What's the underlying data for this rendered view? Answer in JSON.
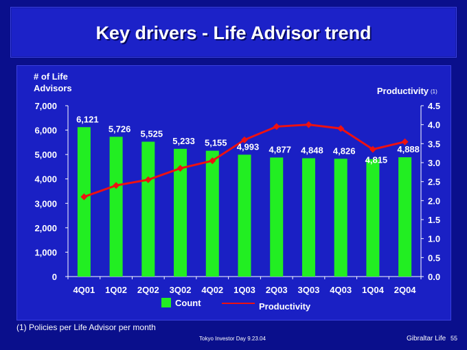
{
  "slide": {
    "title": "Key drivers - Life Advisor trend",
    "footnote": "(1) Policies per Life Advisor per month",
    "footer_event": "Tokyo Investor Day 9.23.04",
    "footer_company": "Gibraltar Life",
    "page_number": "55"
  },
  "colors": {
    "background": "#0a0f8c",
    "panel": "#1a20c4",
    "bar": "#22ee22",
    "line": "#ee1111"
  },
  "chart_data": {
    "type": "bar",
    "categories": [
      "4Q01",
      "1Q02",
      "2Q02",
      "3Q02",
      "4Q02",
      "1Q03",
      "2Q03",
      "3Q03",
      "4Q03",
      "1Q04",
      "2Q04"
    ],
    "series": [
      {
        "name": "Count",
        "type": "bar",
        "axis": "left",
        "values": [
          6121,
          5726,
          5525,
          5233,
          5155,
          4993,
          4877,
          4848,
          4826,
          4815,
          4888
        ],
        "labels": [
          "6,121",
          "5,726",
          "5,525",
          "5,233",
          "5,155",
          "4,993",
          "4,877",
          "4,848",
          "4,826",
          "4,815",
          "4,888"
        ]
      },
      {
        "name": "Productivity",
        "type": "line",
        "axis": "right",
        "values": [
          2.1,
          2.4,
          2.55,
          2.85,
          3.05,
          3.6,
          3.95,
          4.0,
          3.9,
          3.35,
          3.55
        ]
      }
    ],
    "y_left": {
      "label_line1": "# of Life",
      "label_line2": "Advisors",
      "range": [
        0,
        7000
      ],
      "ticks": [
        "0",
        "1,000",
        "2,000",
        "3,000",
        "4,000",
        "5,000",
        "6,000",
        "7,000"
      ]
    },
    "y_right": {
      "label": "Productivity",
      "label_note": "(1)",
      "range": [
        0,
        4.5
      ],
      "ticks": [
        "0.0",
        "0.5",
        "1.0",
        "1.5",
        "2.0",
        "2.5",
        "3.0",
        "3.5",
        "4.0",
        "4.5"
      ]
    },
    "legend_placement": "bottom",
    "grid": false
  }
}
